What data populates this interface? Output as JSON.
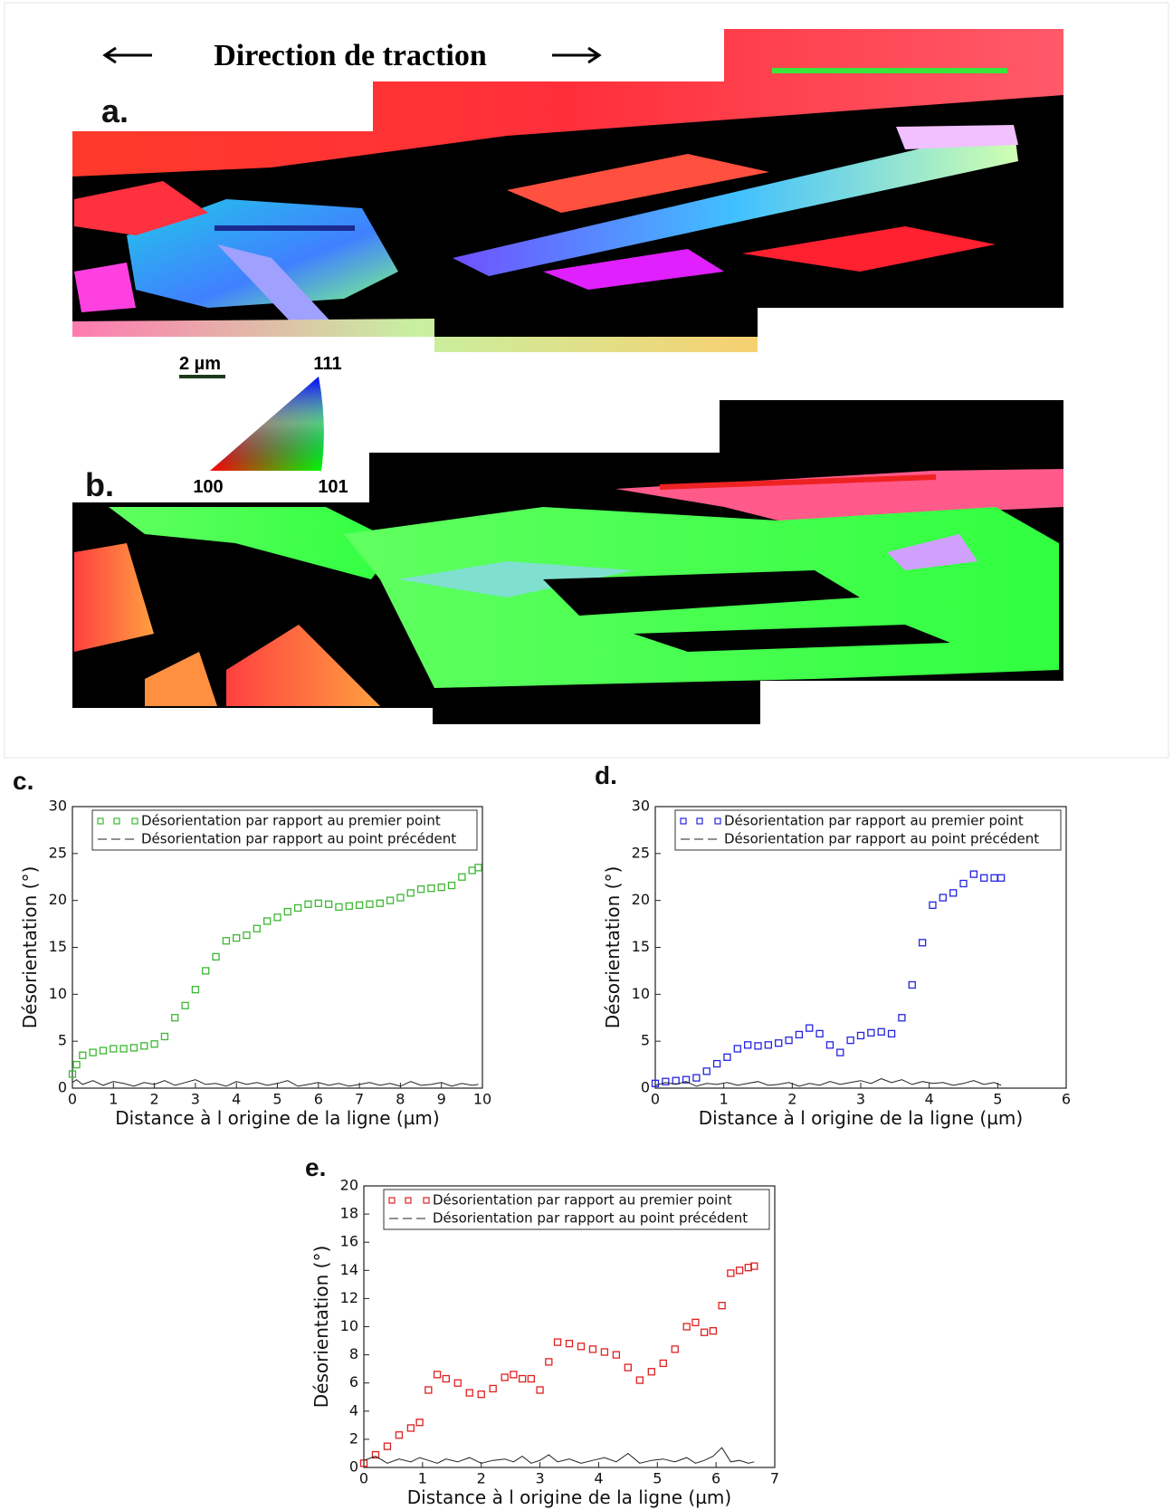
{
  "figure": {
    "title": "Direction de traction",
    "panel_a": "a.",
    "panel_b": "b.",
    "scale_bar": "2 µm",
    "ipf_111": "111",
    "ipf_100": "100",
    "ipf_101": "101"
  },
  "chart_data": [
    {
      "type": "scatter",
      "panel_label": "c.",
      "xlabel": "Distance à l origine de la ligne (µm)",
      "ylabel": "Désorientation (°)",
      "legend": "upper left",
      "x": [
        0,
        0.1,
        0.25,
        0.5,
        0.75,
        1,
        1.25,
        1.5,
        1.75,
        2,
        2.25,
        2.5,
        2.75,
        3,
        3.25,
        3.5,
        3.75,
        4,
        4.25,
        4.5,
        4.75,
        5,
        5.25,
        5.5,
        5.75,
        6,
        6.25,
        6.5,
        6.75,
        7,
        7.25,
        7.5,
        7.75,
        8,
        8.25,
        8.5,
        8.75,
        9,
        9.25,
        9.5,
        9.75,
        9.9
      ],
      "series": [
        {
          "name": "Désorientation par rapport au premier point",
          "color": "#3cb832",
          "style": "markers",
          "values": [
            1.5,
            2.5,
            3.5,
            3.8,
            4,
            4.2,
            4.2,
            4.3,
            4.5,
            4.7,
            5.5,
            7.5,
            8.8,
            10.5,
            12.5,
            14,
            15.7,
            16,
            16.3,
            17,
            17.8,
            18.2,
            18.8,
            19.2,
            19.6,
            19.7,
            19.6,
            19.3,
            19.4,
            19.5,
            19.6,
            19.7,
            20,
            20.3,
            20.8,
            21.2,
            21.3,
            21.4,
            21.6,
            22.5,
            23.2,
            23.5
          ]
        },
        {
          "name": "Désorientation par rapport au point précédent",
          "color": "#222222",
          "style": "dashed",
          "values": [
            0.6,
            0.9,
            0.4,
            0.8,
            0.3,
            0.7,
            0.5,
            0.2,
            0.6,
            0.4,
            0.8,
            0.3,
            0.6,
            0.9,
            0.4,
            0.5,
            0.2,
            0.7,
            0.4,
            0.6,
            0.3,
            0.5,
            0.8,
            0.2,
            0.4,
            0.6,
            0.3,
            0.5,
            0.2,
            0.4,
            0.6,
            0.3,
            0.5,
            0.2,
            0.7,
            0.3,
            0.4,
            0.6,
            0.2,
            0.5,
            0.3,
            0.4
          ]
        }
      ],
      "xlim": [
        0,
        10
      ],
      "xticks": [
        0,
        1,
        2,
        3,
        4,
        5,
        6,
        7,
        8,
        9,
        10
      ],
      "ylim": [
        0,
        30
      ],
      "yticks": [
        0,
        5,
        10,
        15,
        20,
        25,
        30
      ]
    },
    {
      "type": "scatter",
      "panel_label": "d.",
      "xlabel": "Distance à l origine de la ligne (µm)",
      "ylabel": "Désorientation (°)",
      "legend": "upper left",
      "x": [
        0,
        0.15,
        0.3,
        0.45,
        0.6,
        0.75,
        0.9,
        1.05,
        1.2,
        1.35,
        1.5,
        1.65,
        1.8,
        1.95,
        2.1,
        2.25,
        2.4,
        2.55,
        2.7,
        2.85,
        3.0,
        3.15,
        3.3,
        3.45,
        3.6,
        3.75,
        3.9,
        4.05,
        4.2,
        4.35,
        4.5,
        4.65,
        4.8,
        4.95,
        5.05
      ],
      "series": [
        {
          "name": "Désorientation par rapport au premier point",
          "color": "#2424e0",
          "style": "markers",
          "values": [
            0.5,
            0.7,
            0.8,
            0.9,
            1.1,
            1.8,
            2.6,
            3.3,
            4.2,
            4.6,
            4.5,
            4.6,
            4.8,
            5.1,
            5.7,
            6.4,
            5.8,
            4.6,
            3.8,
            5.1,
            5.6,
            5.9,
            6,
            5.8,
            7.5,
            11,
            15.5,
            19.5,
            20.3,
            20.8,
            21.8,
            22.8,
            22.4,
            22.4,
            22.4
          ]
        },
        {
          "name": "Désorientation par rapport au point précédent",
          "color": "#222222",
          "style": "dashed",
          "values": [
            0.3,
            0.6,
            0.4,
            0.7,
            0.2,
            0.5,
            0.4,
            0.6,
            0.3,
            0.5,
            0.7,
            0.3,
            0.4,
            0.6,
            0.2,
            0.5,
            0.3,
            0.7,
            0.4,
            0.6,
            0.8,
            0.5,
            1.0,
            0.6,
            0.9,
            0.4,
            0.7,
            0.5,
            0.6,
            0.3,
            0.5,
            0.8,
            0.4,
            0.6,
            0.3
          ]
        }
      ],
      "xlim": [
        0,
        6
      ],
      "xticks": [
        0,
        1,
        2,
        3,
        4,
        5,
        6
      ],
      "ylim": [
        0,
        30
      ],
      "yticks": [
        0,
        5,
        10,
        15,
        20,
        25,
        30
      ]
    },
    {
      "type": "scatter",
      "panel_label": "e.",
      "xlabel": "Distance à l origine de la ligne (µm)",
      "ylabel": "Désorientation (°)",
      "legend": "upper left",
      "x": [
        0,
        0.2,
        0.4,
        0.6,
        0.8,
        0.95,
        1.1,
        1.25,
        1.4,
        1.6,
        1.8,
        2.0,
        2.2,
        2.4,
        2.55,
        2.7,
        2.85,
        3.0,
        3.15,
        3.3,
        3.5,
        3.7,
        3.9,
        4.1,
        4.3,
        4.5,
        4.7,
        4.9,
        5.1,
        5.3,
        5.5,
        5.65,
        5.8,
        5.95,
        6.1,
        6.25,
        6.4,
        6.55,
        6.65
      ],
      "series": [
        {
          "name": "Désorientation par rapport au premier point",
          "color": "#e02020",
          "style": "markers",
          "values": [
            0.3,
            0.9,
            1.5,
            2.3,
            2.8,
            3.2,
            5.5,
            6.6,
            6.3,
            6.0,
            5.3,
            5.2,
            5.6,
            6.4,
            6.6,
            6.3,
            6.3,
            5.5,
            7.5,
            8.9,
            8.8,
            8.6,
            8.4,
            8.2,
            8.0,
            7.1,
            6.2,
            6.8,
            7.4,
            8.4,
            10.0,
            10.3,
            9.6,
            9.7,
            11.5,
            13.8,
            14.0,
            14.2,
            14.3
          ]
        },
        {
          "name": "Désorientation par rapport au point précédent",
          "color": "#222222",
          "style": "dashed",
          "values": [
            0.5,
            0.8,
            0.3,
            0.6,
            0.4,
            0.7,
            0.5,
            0.3,
            0.6,
            0.4,
            0.7,
            0.3,
            0.5,
            0.6,
            0.4,
            0.8,
            0.3,
            0.5,
            0.9,
            0.4,
            0.6,
            0.3,
            0.5,
            0.7,
            0.4,
            1.0,
            0.3,
            0.5,
            0.6,
            0.4,
            0.7,
            0.3,
            0.5,
            0.8,
            1.4,
            0.4,
            0.5,
            0.3,
            0.4
          ]
        }
      ],
      "xlim": [
        0,
        7
      ],
      "xticks": [
        0,
        1,
        2,
        3,
        4,
        5,
        6,
        7
      ],
      "ylim": [
        0,
        20
      ],
      "yticks": [
        0,
        2,
        4,
        6,
        8,
        10,
        12,
        14,
        16,
        18,
        20
      ]
    }
  ]
}
